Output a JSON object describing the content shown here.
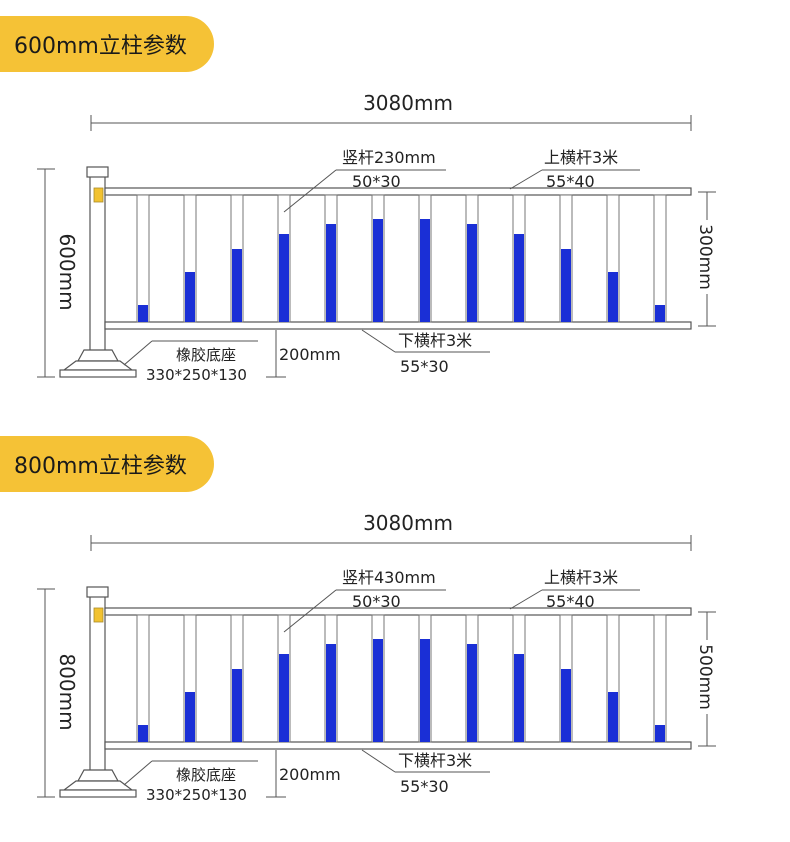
{
  "sections": [
    {
      "id": "600",
      "title": "600mm立柱参数",
      "total_length": "3080mm",
      "height": "600mm",
      "rail_gap": "300mm",
      "vertical_bar_label": "竖杆230mm",
      "vertical_bar_size": "50*30",
      "top_rail_label": "上横杆3米",
      "top_rail_size": "55*40",
      "bottom_rail_label": "下横杆3米",
      "bottom_rail_size": "55*30",
      "base_label": "橡胶底座",
      "base_size": "330*250*130",
      "ground_gap": "200mm"
    },
    {
      "id": "800",
      "title": "800mm立柱参数",
      "total_length": "3080mm",
      "height": "800mm",
      "rail_gap": "500mm",
      "vertical_bar_label": "竖杆430mm",
      "vertical_bar_size": "50*30",
      "top_rail_label": "上横杆3米",
      "top_rail_size": "55*40",
      "bottom_rail_label": "下横杆3米",
      "bottom_rail_size": "55*30",
      "base_label": "橡胶底座",
      "base_size": "330*250*130",
      "ground_gap": "200mm"
    }
  ],
  "colors": {
    "tab": "#f5c236",
    "blue_fill": "#1a2fd6",
    "reflector": "#f2c230",
    "line": "#555555"
  }
}
